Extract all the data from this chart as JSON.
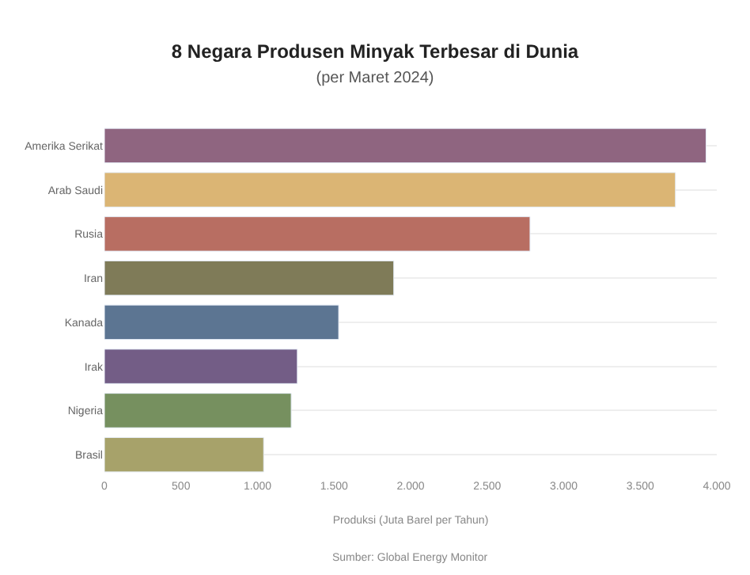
{
  "chart_data": {
    "type": "bar",
    "orientation": "horizontal",
    "title": "8 Negara Produsen Minyak Terbesar di Dunia",
    "subtitle": "(per Maret 2024)",
    "xlabel": "Produksi (Juta Barel per Tahun)",
    "categories": [
      "Amerika Serikat",
      "Arab Saudi",
      "Rusia",
      "Iran",
      "Kanada",
      "Irak",
      "Nigeria",
      "Brasil"
    ],
    "values": [
      3930,
      3730,
      2780,
      1890,
      1530,
      1260,
      1220,
      1040
    ],
    "colors": [
      "#8f6580",
      "#dbb574",
      "#b86e62",
      "#7f7b58",
      "#5c7592",
      "#735d86",
      "#76905f",
      "#a7a26a"
    ],
    "xlim": [
      0,
      4000
    ],
    "xticks": [
      0,
      500,
      {
        "value": 1000,
        "label": "1.000"
      },
      {
        "value": 1500,
        "label": "1.500"
      },
      {
        "value": 2000,
        "label": "2.000"
      },
      {
        "value": 2500,
        "label": "2.500"
      },
      {
        "value": 3000,
        "label": "3.000"
      },
      {
        "value": 3500,
        "label": "3.500"
      },
      {
        "value": 4000,
        "label": "4.000"
      }
    ],
    "grid": "y",
    "legend": false,
    "annotations": [
      "Sumber: Global Energy Monitor"
    ]
  }
}
